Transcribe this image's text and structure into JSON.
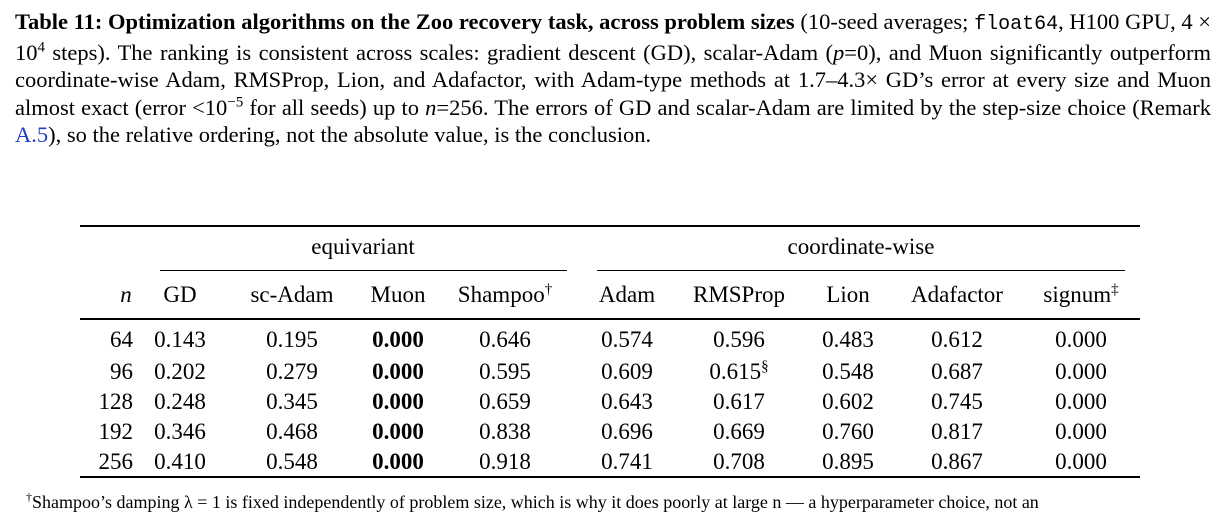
{
  "caption": {
    "parts": [
      "Table 11: Optimization algorithms on the Zoo recovery task, across problem sizes",
      " (10-seed averages; ",
      "float64",
      ", H100 GPU, 4 × 10",
      "4",
      " steps). The ranking is consistent across scales: gradient descent (GD), scalar-Adam (",
      "p",
      "=0), and Muon significantly outperform coordinate-wise Adam, RMSProp, Lion, and Adafactor, with Adam-type methods at 1.7–4.3× GD’s error at every size and Muon almost exact (error <10",
      "−5",
      " for all seeds) up to ",
      "n",
      "=256. The errors of GD and scalar-Adam are limited by the step-size choice (Remark ",
      "A.5",
      "), so the relative ordering, not the absolute value, is the conclusion."
    ]
  },
  "table": {
    "groups": [
      "equivariant",
      "coordinate-wise"
    ],
    "columns": [
      "n",
      "GD",
      "sc-Adam",
      "Muon",
      "Shampoo",
      "Adam",
      "RMSProp",
      "Lion",
      "Adafactor",
      "signum"
    ],
    "column_marks": {
      "Shampoo": "†",
      "signum": "‡"
    },
    "rows": [
      [
        "64",
        "0.143",
        "0.195",
        "0.000",
        "0.646",
        "0.574",
        "0.596",
        "0.483",
        "0.612",
        "0.000"
      ],
      [
        "96",
        "0.202",
        "0.279",
        "0.000",
        "0.595",
        "0.609",
        "0.615",
        "0.548",
        "0.687",
        "0.000"
      ],
      [
        "128",
        "0.248",
        "0.345",
        "0.000",
        "0.659",
        "0.643",
        "0.617",
        "0.602",
        "0.745",
        "0.000"
      ],
      [
        "192",
        "0.346",
        "0.468",
        "0.000",
        "0.838",
        "0.696",
        "0.669",
        "0.760",
        "0.817",
        "0.000"
      ],
      [
        "256",
        "0.410",
        "0.548",
        "0.000",
        "0.918",
        "0.741",
        "0.708",
        "0.895",
        "0.867",
        "0.000"
      ]
    ],
    "rmsprop_96_mark": "§"
  },
  "footnote": {
    "mark": "†",
    "text": "Shampoo’s damping λ = 1 is fixed independently of problem size, which is why it does poorly at large n — a hyperparameter choice, not an"
  }
}
